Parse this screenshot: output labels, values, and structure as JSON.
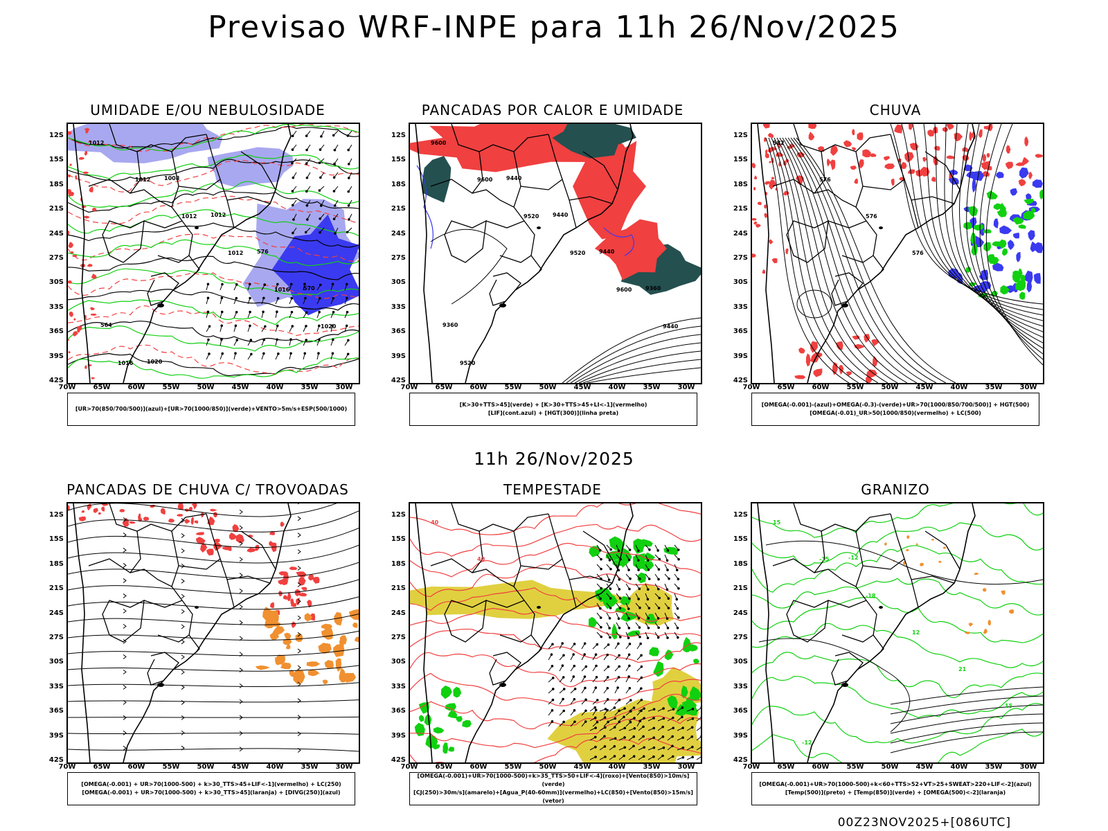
{
  "main_title": "Previsao WRF-INPE  para 11h 26/Nov/2025",
  "mid_title": "11h 26/Nov/2025",
  "footer": "00Z23NOV2025+[086UTC]",
  "lat_labels": [
    "12S",
    "15S",
    "18S",
    "21S",
    "24S",
    "27S",
    "30S",
    "33S",
    "36S",
    "39S",
    "42S"
  ],
  "lon_labels": [
    "70W",
    "65W",
    "60W",
    "55W",
    "50W",
    "45W",
    "40W",
    "35W",
    "30W"
  ],
  "colors": {
    "blue": "#3a3af0",
    "lightblue": "#a8a8f0",
    "green": "#10d010",
    "red": "#f04040",
    "darkteal": "#245050",
    "yellow": "#e0d040",
    "orange": "#f09030",
    "black": "#000000"
  },
  "panels": [
    {
      "title": "UMIDADE E/OU NEBULOSIDADE",
      "legend": [
        "[UR>70(850/700/500)](azul)+[UR>70(1000/850)](verde)+VENTO>5m/s+ESP(500/1000)"
      ],
      "contour_labels": [
        "1012",
        "1012",
        "1012",
        "1012",
        "1016",
        "1020",
        "1016",
        "1008",
        "1012",
        "576",
        "570",
        "564",
        "1020"
      ]
    },
    {
      "title": "PANCADAS POR CALOR E UMIDADE",
      "legend": [
        "[K>30+TTS>45](verde)  +  [K>30+TTS>45+LI<-1](vermelho)",
        "[LIF](cont.azul)  +  [HGT(300)](linha preta)"
      ],
      "contour_labels": [
        "9600",
        "9600",
        "9520",
        "9520",
        "9600",
        "9440",
        "9520",
        "9440",
        "9440",
        "9440",
        "9360",
        "9360"
      ]
    },
    {
      "title": "CHUVA",
      "legend": [
        "[OMEGA(-0.001)-(azul)+OMEGA(-0.3)-(verde)+UR>70(1000/850/700/500)]  +  HGT(500)",
        "[OMEGA(-0.01)_UR>50(1000/850)(vermelho)  +  LC(500)"
      ],
      "contour_labels": [
        "582",
        "576",
        "576",
        "576"
      ]
    },
    {
      "title": "PANCADAS DE CHUVA C/ TROVOADAS",
      "legend": [
        "[OMEGA(-0.001)  +  UR>70(1000-500)  +  k>30_TTS>45+LIF<-1](vermelho)  +  LC(250)",
        "[OMEGA(-0.001)  +  UR>70(1000-500)  +  k>30_TTS>45](laranja)  +  [DIVG(250)](azul)"
      ],
      "contour_labels": []
    },
    {
      "title": "TEMPESTADE",
      "legend": [
        "[OMEGA(-0.001)+UR>70(1000-500)+k>35_TTS>50+LIF<-4](roxo)+[Vento(850)>10m/s](verde)",
        "[CJ(250)>30m/s](amarelo)+[Agua_P(40-60mm)](vermelho)+LC(850)+[Vento(850)>15m/s](vetor)"
      ],
      "contour_labels": [
        "40",
        "40"
      ]
    },
    {
      "title": "GRANIZO",
      "legend": [
        "[OMEGA(-0.001)+UR>70(1000-500)+k<60+TTS>52+VT>25+SWEAT>220+LIF<-2](azul)",
        "[Temp(500)](preto)  +  [Temp(850)](verde)  +  [OMEGA(500)<-2](laranja)"
      ],
      "contour_labels": [
        "15",
        "-15",
        "-18",
        "12",
        "21",
        "15",
        "-12",
        "-12"
      ]
    }
  ]
}
